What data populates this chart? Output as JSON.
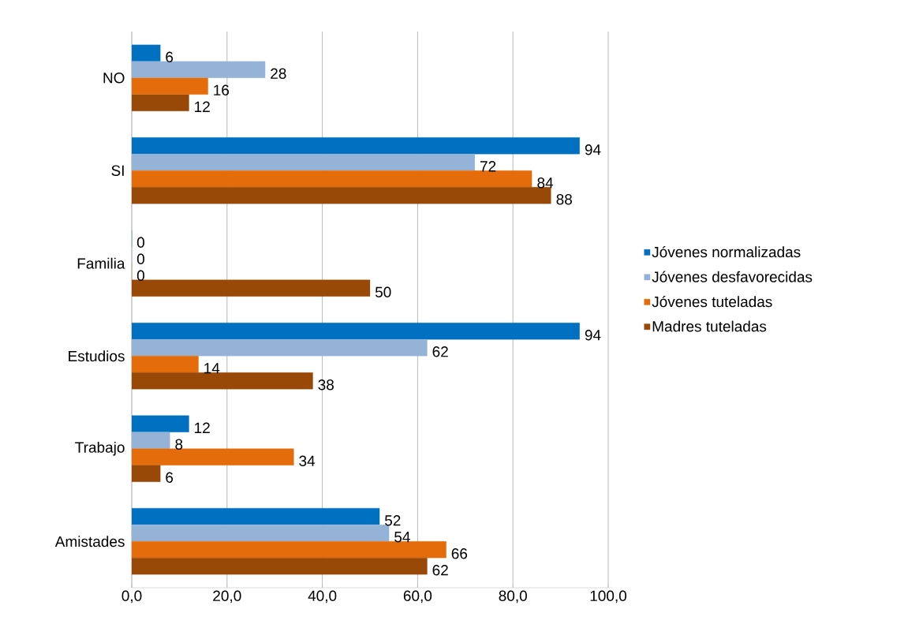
{
  "chart_data": {
    "type": "bar",
    "orientation": "horizontal",
    "categories": [
      "NO",
      "SI",
      "Familia",
      "Estudios",
      "Trabajo",
      "Amistades"
    ],
    "series": [
      {
        "name": "Jóvenes normalizadas",
        "color": "#0070c0",
        "values": [
          6,
          94,
          0,
          94,
          12,
          52
        ]
      },
      {
        "name": "Jóvenes desfavorecidas",
        "color": "#95b3d7",
        "values": [
          28,
          72,
          0,
          62,
          8,
          54
        ]
      },
      {
        "name": "Jóvenes tuteladas",
        "color": "#e46c0a",
        "values": [
          16,
          84,
          0,
          14,
          34,
          66
        ]
      },
      {
        "name": "Madres tuteladas",
        "color": "#984807",
        "values": [
          12,
          88,
          50,
          38,
          6,
          62
        ]
      }
    ],
    "xlim": [
      0,
      100
    ],
    "xticks": [
      {
        "value": 0,
        "label": "0,0"
      },
      {
        "value": 20,
        "label": "20,0"
      },
      {
        "value": 40,
        "label": "40,0"
      },
      {
        "value": 60,
        "label": "60,0"
      },
      {
        "value": 80,
        "label": "80,0"
      },
      {
        "value": 100,
        "label": "100,0"
      }
    ],
    "grid": "x",
    "legend": "right",
    "data_labels": true
  }
}
